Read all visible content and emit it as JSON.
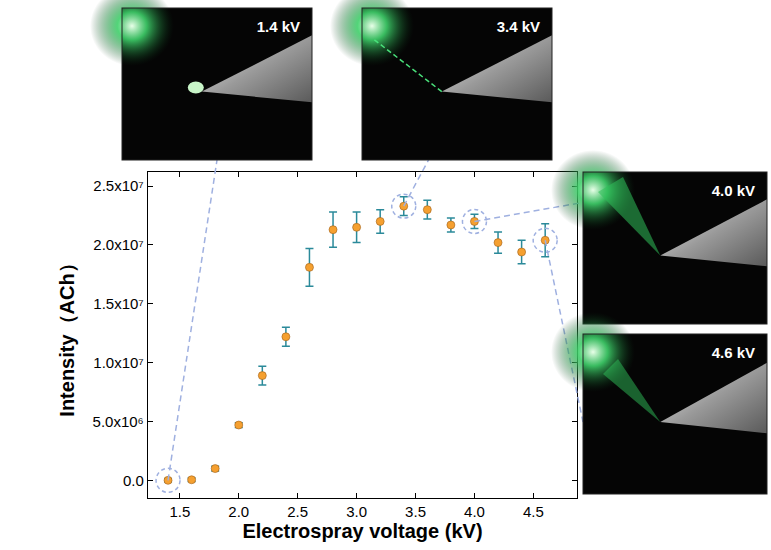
{
  "chart_data": {
    "type": "scatter",
    "x_label": "Electrospray voltage (kV)",
    "y_label": "Intensity（ACh）",
    "x": [
      1.4,
      1.6,
      1.8,
      2.0,
      2.2,
      2.4,
      2.6,
      2.8,
      3.0,
      3.2,
      3.4,
      3.6,
      3.8,
      4.0,
      4.2,
      4.4,
      4.6
    ],
    "values": [
      0,
      50000,
      1000000,
      4700000,
      8900000,
      12200000,
      18100000,
      21300000,
      21500000,
      22000000,
      23300000,
      23000000,
      21700000,
      22000000,
      20200000,
      19400000,
      20400000
    ],
    "errors": [
      150000,
      150000,
      200000,
      200000,
      800000,
      800000,
      1600000,
      1500000,
      1300000,
      1000000,
      800000,
      800000,
      600000,
      600000,
      900000,
      1000000,
      1400000
    ],
    "color": "#f5a030",
    "marker": "circle",
    "xlim": [
      1.23,
      4.87
    ],
    "xticks": [
      1.5,
      {
        "value": 2,
        "label": "2.0"
      },
      2.5,
      {
        "value": 3,
        "label": "3.0"
      },
      3.5,
      {
        "value": 4,
        "label": "4.0"
      },
      4.5
    ],
    "ylim": [
      -1500000,
      26200000
    ],
    "yticks": [
      {
        "value": 0,
        "label": "0.0"
      },
      {
        "value": 5000000,
        "label": "5.0x10⁶"
      },
      {
        "value": 10000000,
        "label": "1.0x10⁷"
      },
      {
        "value": 15000000,
        "label": "1.5x10⁷"
      },
      {
        "value": 20000000,
        "label": "2.0x10⁷"
      },
      {
        "value": 25000000,
        "label": "2.5x10⁷"
      }
    ],
    "grid": false,
    "annotations": [
      {
        "text": "1.4 kV",
        "x": 1.4
      },
      {
        "text": "3.4 kV",
        "x": 3.4
      },
      {
        "text": "4.0 kV",
        "x": 4.0
      },
      {
        "text": "4.6 kV",
        "x": 4.6
      }
    ]
  }
}
